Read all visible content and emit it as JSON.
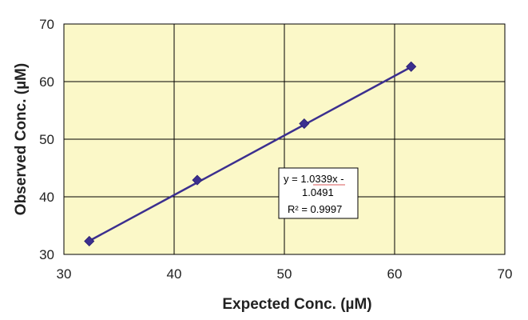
{
  "chart_data": {
    "type": "scatter",
    "title": "",
    "xlabel": "Expected Conc. (µM)",
    "ylabel": "Observed Conc. (µM)",
    "xlim": [
      30,
      70
    ],
    "ylim": [
      30,
      70
    ],
    "x_ticks": [
      "30",
      "40",
      "50",
      "60",
      "70"
    ],
    "y_ticks": [
      "30",
      "40",
      "50",
      "60",
      "70"
    ],
    "grid": true,
    "legend": "none",
    "series": [
      {
        "x": [
          32.3,
          42.1,
          51.8,
          61.5
        ],
        "y": [
          32.3,
          42.9,
          52.7,
          62.6
        ],
        "color": "#3b2f8f",
        "marker": "diamond",
        "trendline": {
          "type": "linear",
          "slope": 1.0339,
          "intercept": -1.0491
        }
      }
    ],
    "annotations": {
      "equation_line1": "y = 1.0339x -",
      "equation_line2": "1.0491",
      "r_squared": "R² = 0.9997"
    },
    "colors": {
      "plot_background": "#fbf8c8",
      "grid": "#000000",
      "series": "#3b2f8f"
    }
  }
}
